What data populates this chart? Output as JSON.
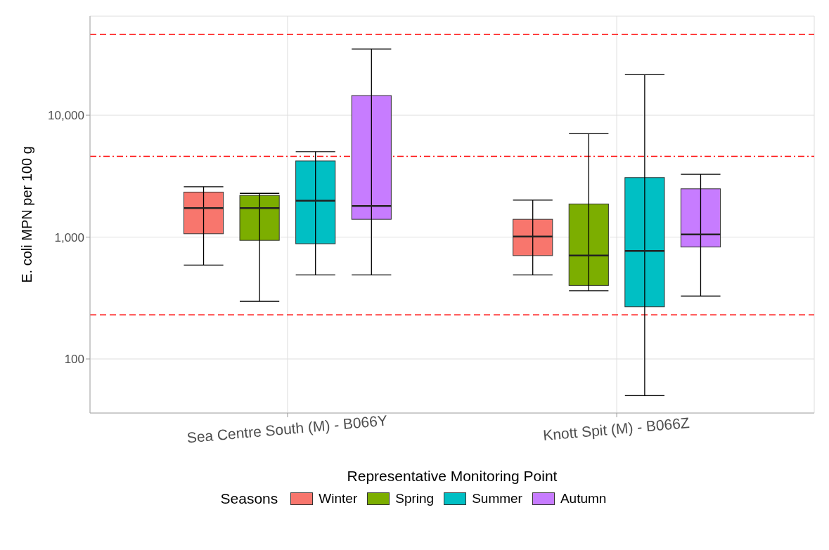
{
  "chart_data": {
    "type": "box",
    "xlabel": "Representative Monitoring Point",
    "ylabel": "E. coli MPN per 100 g",
    "legend_title": "Seasons",
    "legend": "bottom",
    "grid": true,
    "log": "y",
    "categories": [
      "Sea Centre South (M) - B066Y",
      "Knott Spit (M) - B066Z"
    ],
    "ylim": [
      36,
      65000
    ],
    "yticks": [
      {
        "value": 100,
        "label": "100"
      },
      {
        "value": 1000,
        "label": "1,000"
      },
      {
        "value": 10000,
        "label": "10,000"
      }
    ],
    "ref_lines": [
      {
        "axis": "y",
        "value": 46000,
        "color": "#ff0000",
        "line_style": "dashed"
      },
      {
        "axis": "y",
        "value": 4600,
        "color": "#ff0000",
        "line_style": "dashdot"
      },
      {
        "axis": "y",
        "value": 230,
        "color": "#ff0000",
        "line_style": "dashed"
      }
    ],
    "series": [
      {
        "name": "Winter",
        "color": "#f8766d",
        "boxes": [
          {
            "low": 590,
            "q1": 1065,
            "median": 1730,
            "q3": 2340,
            "high": 2590
          },
          {
            "low": 490,
            "q1": 705,
            "median": 1010,
            "q3": 1400,
            "high": 2010
          }
        ]
      },
      {
        "name": "Spring",
        "color": "#7cae00",
        "boxes": [
          {
            "low": 297,
            "q1": 940,
            "median": 1730,
            "q3": 2200,
            "high": 2285
          },
          {
            "low": 363,
            "q1": 401,
            "median": 705,
            "q3": 1870,
            "high": 7050
          }
        ]
      },
      {
        "name": "Summer",
        "color": "#00bfc4",
        "boxes": [
          {
            "low": 490,
            "q1": 882,
            "median": 1990,
            "q3": 4220,
            "high": 5020
          },
          {
            "low": 50,
            "q1": 268,
            "median": 769,
            "q3": 3080,
            "high": 21500
          }
        ]
      },
      {
        "name": "Autumn",
        "color": "#c77cff",
        "boxes": [
          {
            "low": 490,
            "q1": 1400,
            "median": 1800,
            "q3": 14500,
            "high": 34900
          },
          {
            "low": 328,
            "q1": 829,
            "median": 1050,
            "q3": 2490,
            "high": 3280
          }
        ]
      }
    ]
  }
}
